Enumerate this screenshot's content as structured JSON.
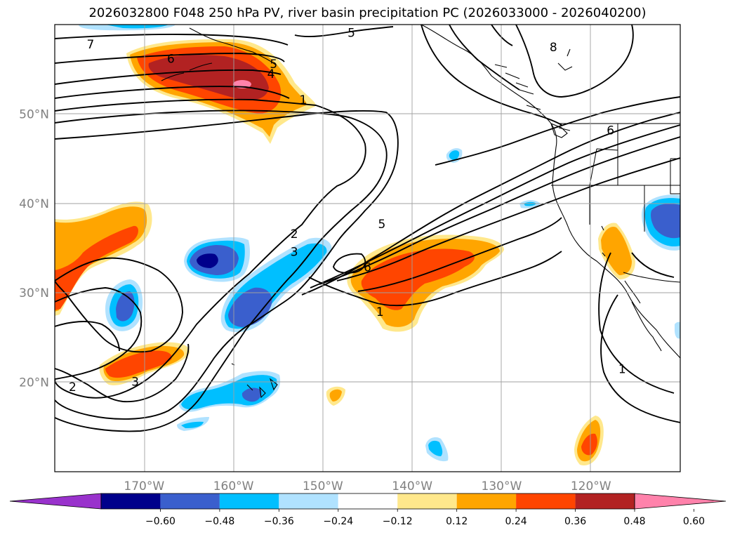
{
  "title": "2026032800 F048 250 hPa PV, river basin precipitation PC (2026033000 - 2026040200)",
  "chart_data": {
    "type": "map",
    "title": "2026032800 F048 250 hPa PV, river basin precipitation PC (2026033000 - 2026040200)",
    "fields": [
      "250 hPa PV (contours)",
      "river basin precipitation PC (shaded)"
    ],
    "lon_range": [
      -180,
      -110
    ],
    "lat_range": [
      10,
      60
    ],
    "grid": true,
    "lat_ticks": [
      {
        "value": 20,
        "label": "20°N"
      },
      {
        "value": 30,
        "label": "30°N"
      },
      {
        "value": 40,
        "label": "40°N"
      },
      {
        "value": 50,
        "label": "50°N"
      }
    ],
    "lon_ticks": [
      {
        "value": -170,
        "label": "170°W"
      },
      {
        "value": -160,
        "label": "160°W"
      },
      {
        "value": -150,
        "label": "150°W"
      },
      {
        "value": -140,
        "label": "140°W"
      },
      {
        "value": -130,
        "label": "130°W"
      },
      {
        "value": -120,
        "label": "120°W"
      }
    ],
    "contour_labels": [
      {
        "text": "7",
        "lon": -176,
        "lat": 57.8
      },
      {
        "text": "6",
        "lon": -167,
        "lat": 56.2
      },
      {
        "text": "5",
        "lon": -155.5,
        "lat": 55.6
      },
      {
        "text": "4",
        "lon": -155.8,
        "lat": 54.5
      },
      {
        "text": "1",
        "lon": -152.2,
        "lat": 51.6
      },
      {
        "text": "5",
        "lon": -146.8,
        "lat": 59.1
      },
      {
        "text": "8",
        "lon": -124.2,
        "lat": 57.5
      },
      {
        "text": "6",
        "lon": -117.8,
        "lat": 48.2
      },
      {
        "text": "2",
        "lon": -153.2,
        "lat": 36.6
      },
      {
        "text": "3",
        "lon": -153.2,
        "lat": 34.6
      },
      {
        "text": "5",
        "lon": -143.4,
        "lat": 37.7
      },
      {
        "text": "6",
        "lon": -145,
        "lat": 32.9
      },
      {
        "text": "1",
        "lon": -143.6,
        "lat": 27.9
      },
      {
        "text": "2",
        "lon": -178,
        "lat": 19.5
      },
      {
        "text": "3",
        "lon": -171,
        "lat": 20.1
      },
      {
        "text": "1",
        "lon": -116.5,
        "lat": 21.5
      }
    ],
    "colorbar": {
      "extend": "both",
      "colors": [
        "#9932cc",
        "#00008b",
        "#3a5fcd",
        "#00bfff",
        "#b0e2ff",
        "#ffffff",
        "#ffe88c",
        "#ffa500",
        "#ff4500",
        "#b22222",
        "#ff82ab"
      ],
      "tick_values": [
        -0.6,
        -0.48,
        -0.36,
        -0.24,
        -0.12,
        0.12,
        0.24,
        0.36,
        0.48,
        0.6
      ],
      "tick_labels": [
        "−0.60",
        "−0.48",
        "−0.36",
        "−0.24",
        "−0.12",
        "0.12",
        "0.24",
        "0.36",
        "0.48",
        "0.60"
      ]
    }
  }
}
